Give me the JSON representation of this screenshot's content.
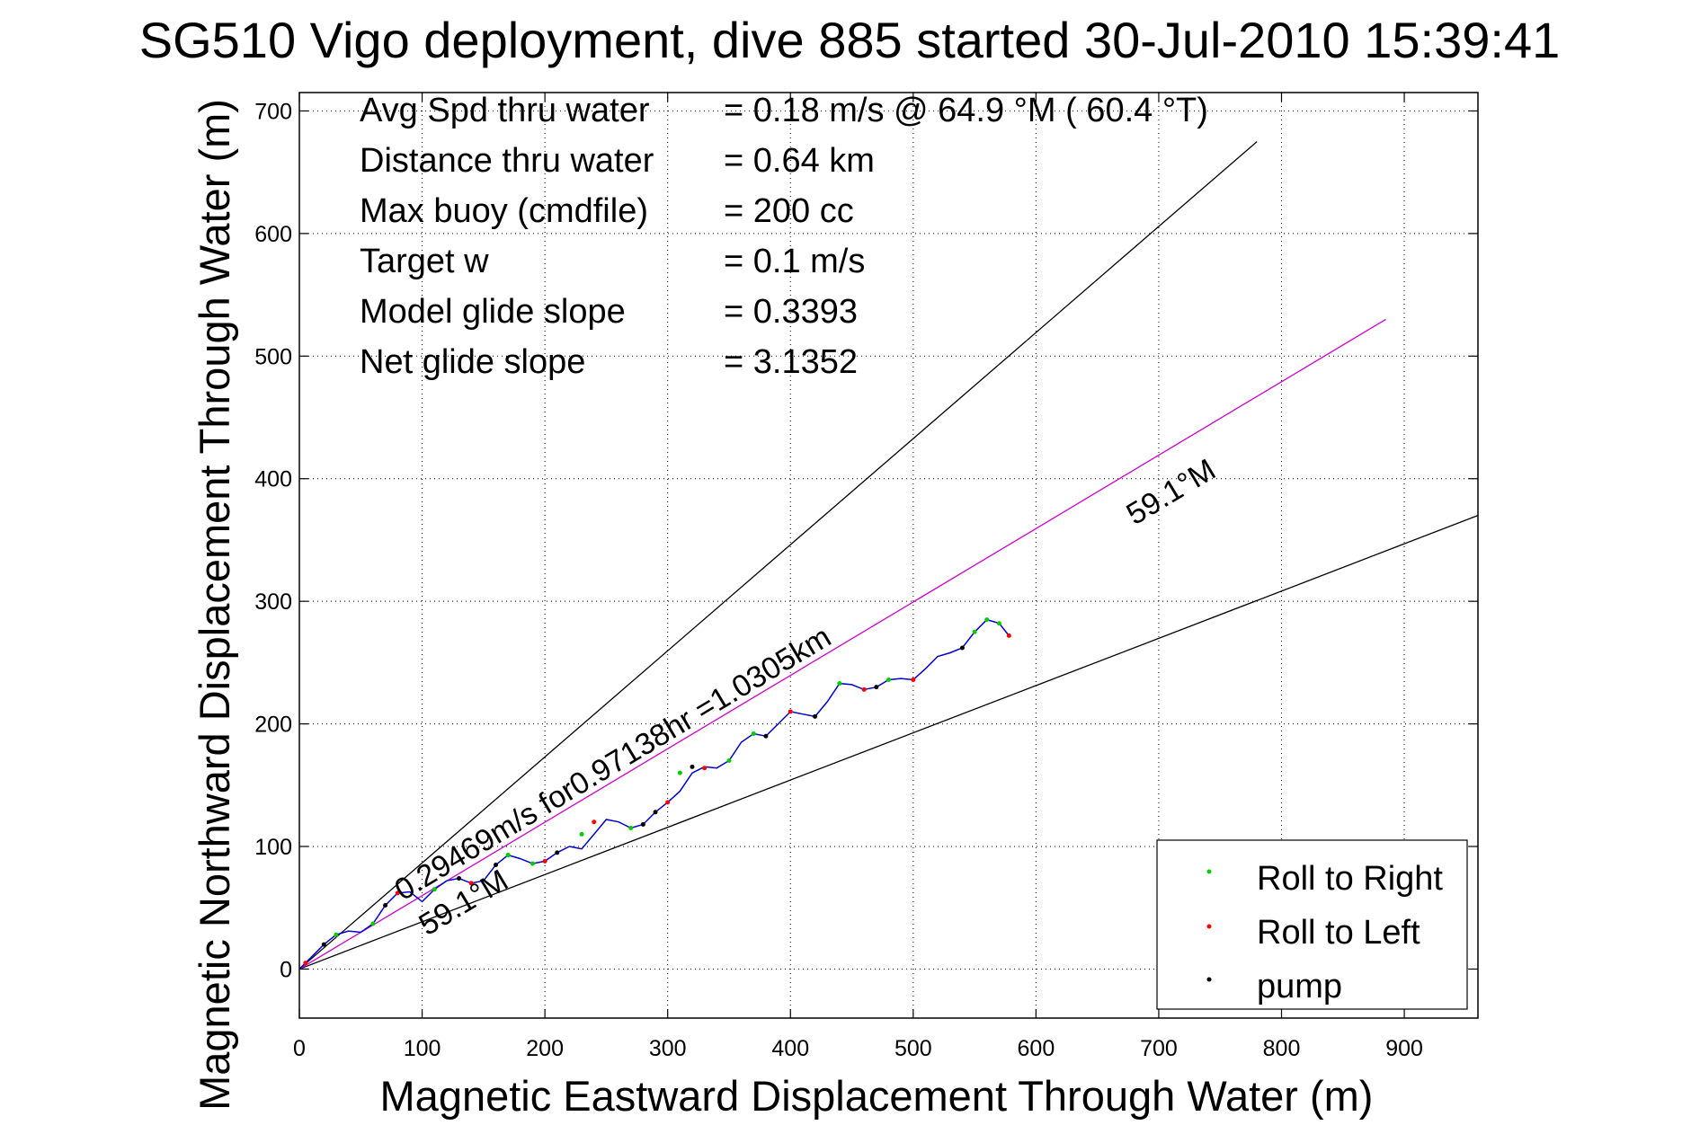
{
  "chart_data": {
    "type": "scatter",
    "title": "SG510 Vigo deployment, dive 885 started 30-Jul-2010 15:39:41",
    "xlabel": "Magnetic Eastward Displacement Through Water (m)",
    "ylabel": "Magnetic Northward Displacement Through Water (m)",
    "xlim": [
      0,
      960
    ],
    "ylim": [
      -40,
      715
    ],
    "xticks": [
      0,
      100,
      200,
      300,
      400,
      500,
      600,
      700,
      800,
      900
    ],
    "yticks": [
      0,
      100,
      200,
      300,
      400,
      500,
      600,
      700
    ],
    "grid": true,
    "legend_position": "bottom-right",
    "info": [
      {
        "label": "Avg Spd thru water",
        "value": "=  0.18 m/s @  64.9 °M ( 60.4 °T)"
      },
      {
        "label": "Distance thru water",
        "value": "=  0.64 km"
      },
      {
        "label": "Max buoy (cmdfile)",
        "value": "= 200 cc"
      },
      {
        "label": "Target w",
        "value": "= 0.1 m/s"
      },
      {
        "label": "Model glide slope",
        "value": "= 0.3393"
      },
      {
        "label": "Net glide slope",
        "value": "= 3.1352"
      }
    ],
    "annotations": {
      "heading_upper": "59.1°M",
      "heading_lower": "59.1°M",
      "current": "0.29469m/s for0.97138hr =1.0305km"
    },
    "lines": [
      {
        "name": "upper-bound",
        "color": "#000000",
        "x": [
          0,
          780
        ],
        "y": [
          0,
          675
        ]
      },
      {
        "name": "lower-bound",
        "color": "#000000",
        "x": [
          0,
          960
        ],
        "y": [
          0,
          370
        ]
      },
      {
        "name": "heading-line",
        "color": "#cc00cc",
        "x": [
          0,
          885
        ],
        "y": [
          0,
          530
        ]
      }
    ],
    "track": {
      "color": "#0000cc",
      "x": [
        0,
        10,
        20,
        30,
        40,
        50,
        60,
        70,
        80,
        90,
        100,
        110,
        120,
        130,
        140,
        150,
        160,
        170,
        180,
        190,
        200,
        210,
        220,
        230,
        240,
        250,
        260,
        270,
        280,
        290,
        300,
        310,
        320,
        330,
        340,
        350,
        360,
        370,
        380,
        390,
        400,
        410,
        420,
        430,
        440,
        450,
        460,
        470,
        480,
        490,
        500,
        510,
        520,
        530,
        540,
        550,
        560,
        570,
        578
      ],
      "y": [
        0,
        10,
        20,
        28,
        31,
        30,
        37,
        52,
        62,
        63,
        55,
        65,
        72,
        74,
        70,
        72,
        85,
        93,
        90,
        86,
        88,
        95,
        100,
        98,
        110,
        122,
        120,
        115,
        118,
        128,
        136,
        145,
        160,
        165,
        164,
        170,
        185,
        192,
        190,
        200,
        210,
        208,
        206,
        218,
        233,
        232,
        228,
        230,
        236,
        237,
        236,
        245,
        255,
        258,
        262,
        275,
        285,
        282,
        272
      ]
    },
    "series": [
      {
        "name": "Roll to Right",
        "color": "#00cc00",
        "marker": "dot",
        "x": [
          30,
          60,
          110,
          170,
          190,
          230,
          270,
          310,
          350,
          370,
          440,
          480,
          550,
          560,
          570
        ],
        "y": [
          28,
          37,
          65,
          93,
          86,
          110,
          115,
          160,
          170,
          192,
          233,
          236,
          275,
          285,
          282
        ]
      },
      {
        "name": "Roll to Left",
        "color": "#ff0000",
        "marker": "dot",
        "x": [
          5,
          80,
          140,
          200,
          240,
          300,
          330,
          400,
          460,
          500,
          578
        ],
        "y": [
          5,
          62,
          70,
          88,
          120,
          136,
          164,
          210,
          228,
          236,
          272
        ]
      },
      {
        "name": "pump",
        "color": "#000000",
        "marker": "dot",
        "x": [
          20,
          70,
          130,
          160,
          210,
          280,
          290,
          320,
          380,
          420,
          470,
          540
        ],
        "y": [
          20,
          52,
          74,
          85,
          95,
          118,
          128,
          165,
          190,
          206,
          230,
          262
        ]
      }
    ]
  }
}
